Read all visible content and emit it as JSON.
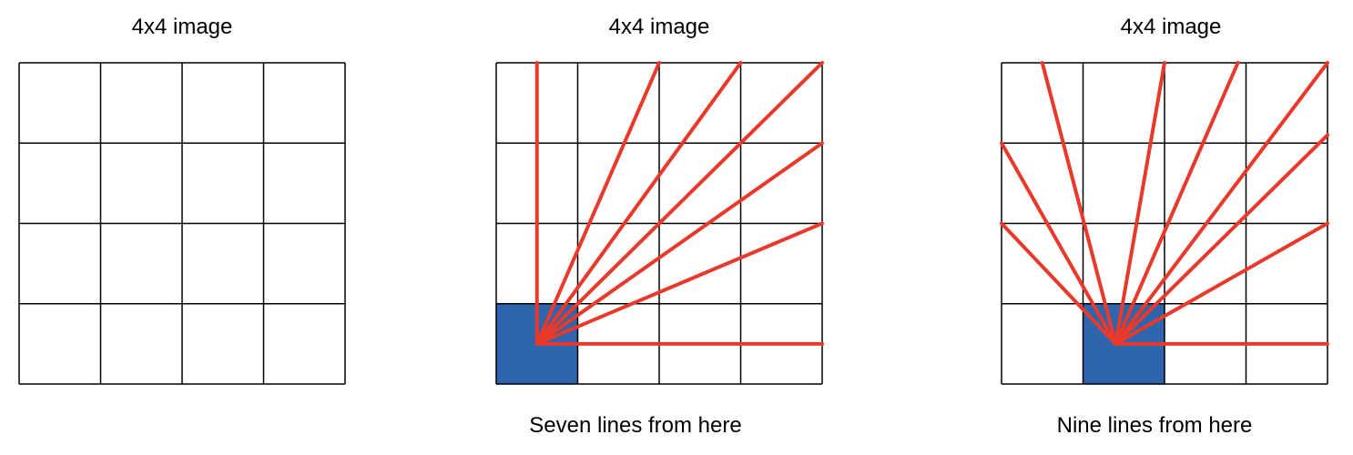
{
  "panels": [
    {
      "title": "4x4 image",
      "caption": "",
      "grid_size": 4,
      "highlight_cell": null,
      "line_count": 0,
      "colors": {
        "grid": "#000000"
      }
    },
    {
      "title": "4x4 image",
      "caption": "Seven lines from here",
      "grid_size": 4,
      "highlight_cell": {
        "col": 0,
        "row": 3
      },
      "line_count": 7,
      "colors": {
        "grid": "#000000",
        "highlight": "#2e66ae",
        "lines": "#e8392b"
      }
    },
    {
      "title": "4x4 image",
      "caption": "Nine lines from here",
      "grid_size": 4,
      "highlight_cell": {
        "col": 1,
        "row": 3
      },
      "line_count": 9,
      "colors": {
        "grid": "#000000",
        "highlight": "#2e66ae",
        "lines": "#e8392b"
      }
    }
  ]
}
